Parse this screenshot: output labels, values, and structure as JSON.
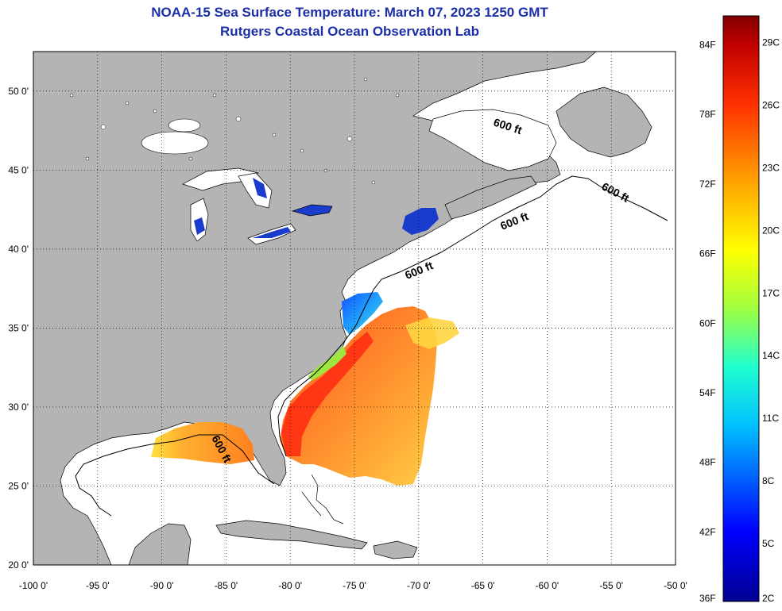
{
  "header": {
    "title": "NOAA-15 Sea Surface Temperature:  March 07, 2023 1250 GMT",
    "subtitle": "Rutgers Coastal Ocean Observation Lab"
  },
  "axes": {
    "lon_ticks": [
      "-100 0'",
      "-95 0'",
      "-90 0'",
      "-85 0'",
      "-80 0'",
      "-75 0'",
      "-70 0'",
      "-65 0'",
      "-60 0'",
      "-55 0'",
      "-50 0'"
    ],
    "lat_ticks": [
      "50 0'",
      "45 0'",
      "40 0'",
      "35 0'",
      "30 0'",
      "25 0'",
      "20 0'"
    ],
    "lon_range": [
      -100,
      -50
    ],
    "lat_range": [
      20,
      52.5
    ]
  },
  "contours": {
    "label": "600 ft",
    "label_count": 5
  },
  "colorbar": {
    "fahrenheit": [
      "84F",
      "78F",
      "72F",
      "66F",
      "60F",
      "54F",
      "48F",
      "42F",
      "36F"
    ],
    "celsius": [
      "29C",
      "26C",
      "23C",
      "20C",
      "17C",
      "14C",
      "11C",
      "8C",
      "5C",
      "2C"
    ]
  },
  "colors": {
    "land": "#b4b4b4",
    "ocean_nodata": "#ffffff",
    "title": "#1c2fa8",
    "lake_cold": "#1a3ccc"
  }
}
